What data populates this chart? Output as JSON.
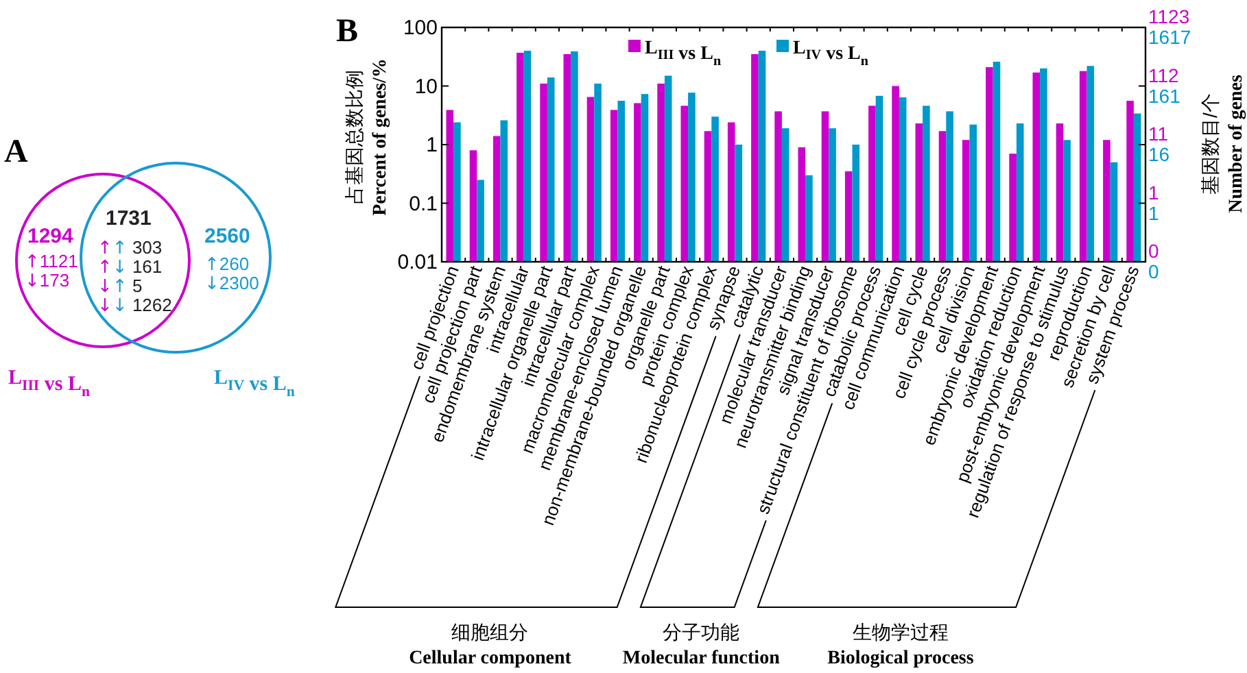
{
  "chart_data": [
    {
      "type": "other",
      "title": "A",
      "categories": [
        "L$_{III}$ vs L$_{n}$",
        "L$_{IV}$ vs L$_{n}$"
      ],
      "colors": [
        "#cc00cc",
        "#1a9ad0"
      ],
      "annotations": [
        "1294",
        "↑1121",
        "↓173",
        "1731",
        "↑↑ 303",
        "↑↓ 161",
        "↓↑ 5",
        "↓↓ 1262",
        "2560",
        "↑260",
        "↓2300"
      ]
    },
    {
      "type": "bar",
      "title": "B",
      "ylabel": "占基因总数比例\nPercent of genes/%",
      "y2label": "基因数目/个\nNumber of genes",
      "categories": [
        "cell projection",
        "cell projection part",
        "endomembrane system",
        "intracellular",
        "intracellular organelle part",
        "intracellular part",
        "macromolecular complex",
        "membrane-enclosed lumen",
        "non-membrane-bounded organelle",
        "organelle part",
        "protein complex",
        "ribonucleoprotein complex",
        "synapse",
        "catalytic",
        "molecular transducer",
        "neurotransmitter binding",
        "signal transducer",
        "structural constituent of ribosome",
        "catabolic process",
        "cell communication",
        "cell cycle",
        "cell cycle process",
        "cell division",
        "embryonic development",
        "oxidation reduction",
        "post-embryonic development",
        "regulation of response to stimulus",
        "reproduction",
        "secretion by cell",
        "system process"
      ],
      "series": [
        {
          "name": "L$_{III}$ vs L$_{n}$",
          "color": "#cc00cc",
          "values": [
            3.9,
            0.8,
            1.4,
            37,
            11,
            35,
            6.5,
            3.9,
            5.1,
            11,
            4.6,
            1.7,
            2.4,
            35,
            3.7,
            0.9,
            3.7,
            0.35,
            4.6,
            10,
            2.3,
            1.7,
            1.2,
            21,
            0.7,
            17,
            2.3,
            18,
            1.2,
            5.6
          ]
        },
        {
          "name": "L$_{IV}$ vs L$_{n}$",
          "color": "#0099cc",
          "values": [
            2.4,
            0.25,
            2.6,
            40,
            14,
            39,
            11,
            5.6,
            7.3,
            15,
            7.7,
            3.0,
            1.0,
            40,
            1.9,
            0.3,
            1.9,
            1.0,
            6.8,
            6.4,
            4.6,
            3.7,
            2.2,
            26,
            2.3,
            20,
            1.2,
            22,
            0.5,
            3.4
          ]
        }
      ],
      "log": "y",
      "ylim": [
        0.01,
        100
      ],
      "yticks": [
        0.01,
        0.1,
        1,
        10,
        100
      ],
      "legend": "top",
      "annotations": [
        "细胞组分\nCellular component",
        "分子功能\nMolecular function",
        "生物学过程\nBiological process",
        "1123",
        "1617",
        "112",
        "161",
        "11",
        "16",
        "1",
        "1",
        "0",
        "0"
      ]
    }
  ]
}
